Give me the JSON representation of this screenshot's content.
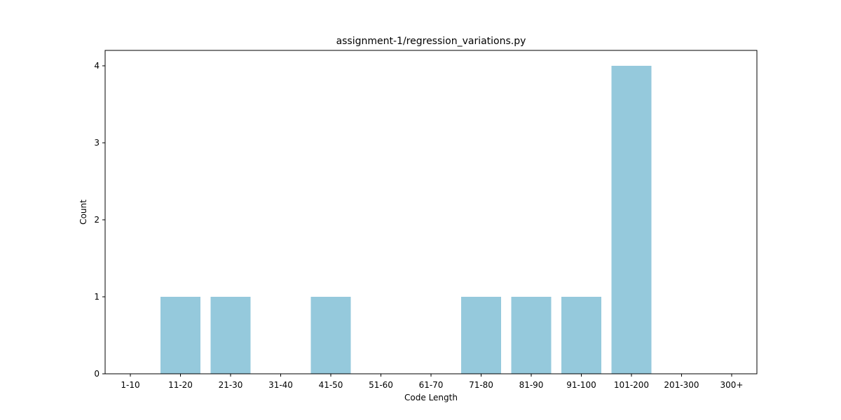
{
  "chart_data": {
    "type": "bar",
    "title": "assignment-1/regression_variations.py",
    "xlabel": "Code Length",
    "ylabel": "Count",
    "categories": [
      "1-10",
      "11-20",
      "21-30",
      "31-40",
      "41-50",
      "51-60",
      "61-70",
      "71-80",
      "81-90",
      "91-100",
      "101-200",
      "201-300",
      "300+"
    ],
    "values": [
      0,
      1,
      1,
      0,
      1,
      0,
      0,
      1,
      1,
      1,
      4,
      0,
      0
    ],
    "ylim": [
      0,
      4.2
    ],
    "yticks": [
      0,
      1,
      2,
      3,
      4
    ],
    "grid": false,
    "bar_color": "#95c9dc"
  }
}
